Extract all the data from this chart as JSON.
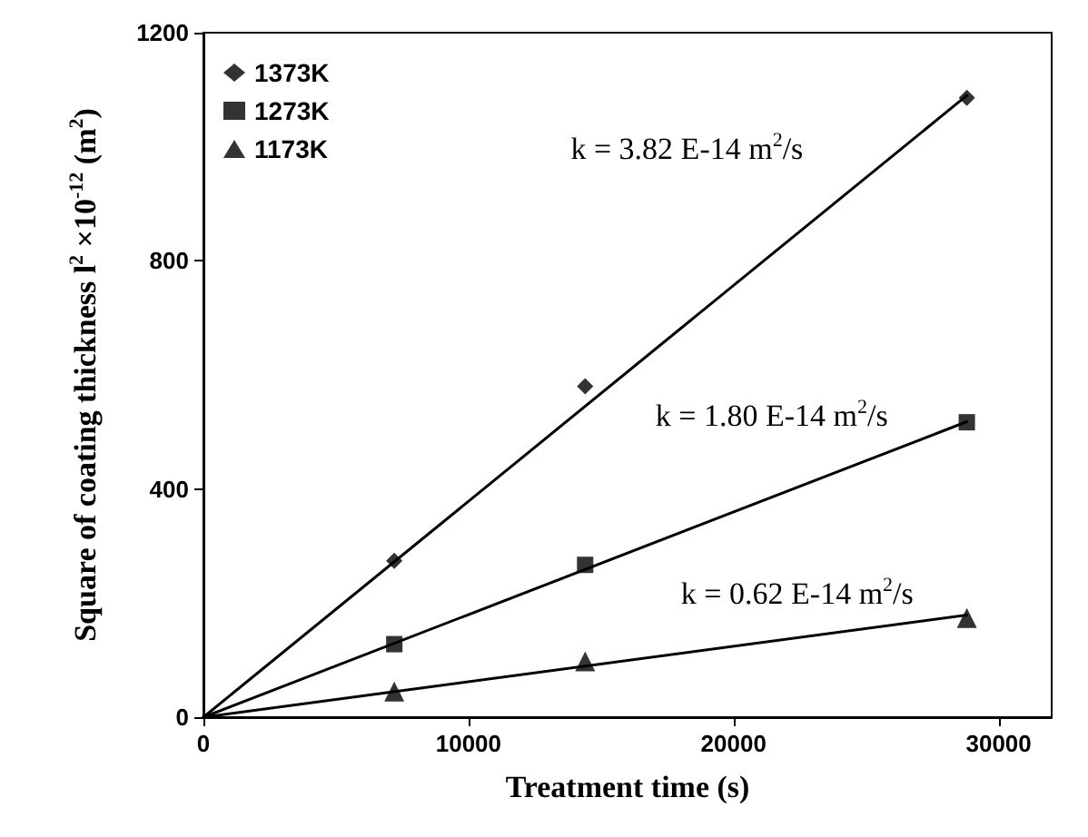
{
  "chart_data": {
    "type": "scatter",
    "xlabel": "Treatment time (s)",
    "ylabel": "Square of coating thickness l$^{2}$ ×10$^{-12}$ (m$^{2}$)",
    "xlim": [
      0,
      32000
    ],
    "xticks": [
      0,
      10000,
      20000,
      30000
    ],
    "ylim": [
      0,
      1200
    ],
    "yticks": [
      0,
      400,
      800,
      1200
    ],
    "grid": false,
    "legend": "top left",
    "series": [
      {
        "name": "1373K",
        "marker": "diamond",
        "color": "#000000",
        "x": [
          7200,
          14400,
          28800
        ],
        "values": [
          274,
          580,
          1086
        ]
      },
      {
        "name": "1273K",
        "marker": "square",
        "color": "#000000",
        "x": [
          7200,
          14400,
          28800
        ],
        "values": [
          128,
          267,
          517
        ]
      },
      {
        "name": "1173K",
        "marker": "triangle",
        "color": "#000000",
        "x": [
          7200,
          14400,
          28800
        ],
        "values": [
          45,
          98,
          174
        ]
      },
      {
        "type": "line",
        "marker": "none",
        "line_style": "solid",
        "color": "#000000",
        "x": [
          0,
          28800
        ],
        "values": [
          0,
          1090
        ]
      },
      {
        "type": "line",
        "marker": "none",
        "line_style": "solid",
        "color": "#000000",
        "x": [
          0,
          28800
        ],
        "values": [
          0,
          518
        ]
      },
      {
        "type": "line",
        "marker": "none",
        "line_style": "solid",
        "color": "#000000",
        "x": [
          0,
          28800
        ],
        "values": [
          0,
          179
        ]
      }
    ],
    "annotations": [
      "k = 3.82 E-14 m$^{2}$/s",
      "k = 1.80 E-14 m$^{2}$/s",
      "k = 0.62 E-14 m$^{2}$/s"
    ]
  }
}
